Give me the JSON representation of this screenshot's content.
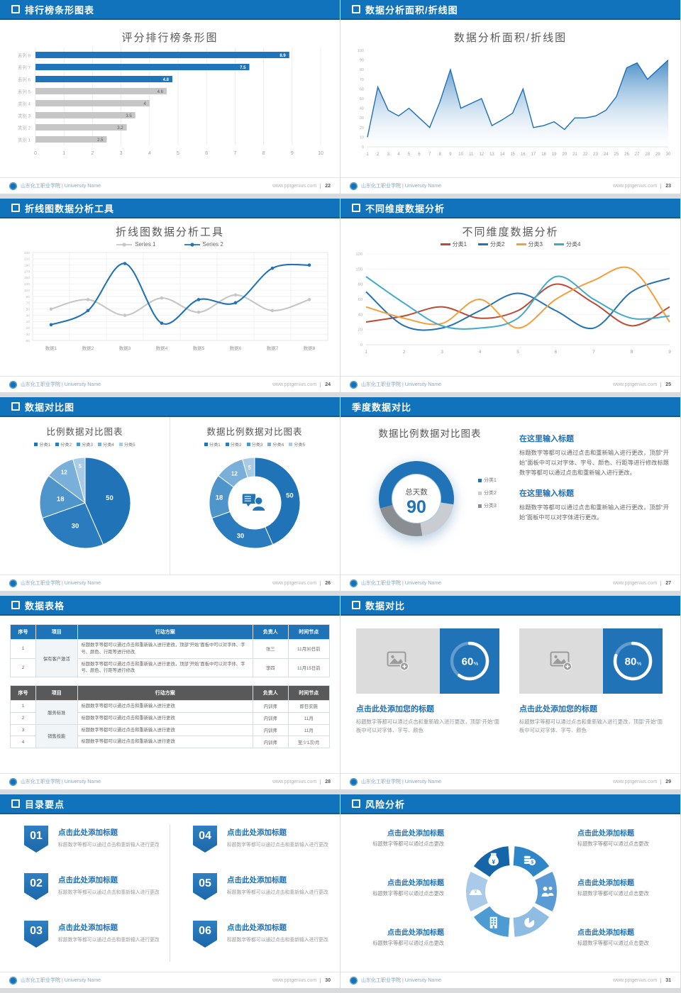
{
  "colors": {
    "header_bar": "#1173BC",
    "accent_blue": "#2173B8",
    "bar_gray": "#C6C6C6",
    "table_header_blue": "#1F74B8",
    "table_header_gray": "#595959"
  },
  "footer": {
    "org": "山东化工职业学院 | University Name",
    "site": "www.pptgenius.com"
  },
  "slides": [
    {
      "id": "bar-ranking",
      "header": "排行榜条形图表",
      "page": "22",
      "title": "评分排行榜条形图"
    },
    {
      "id": "area-line",
      "header": "数据分析面积/折线图",
      "page": "23",
      "title": "数据分析面积/折线图"
    },
    {
      "id": "line-tool",
      "header": "折线图数据分析工具",
      "page": "24",
      "title": "折线图数据分析工具"
    },
    {
      "id": "multi-dim",
      "header": "不同维度数据分析",
      "page": "25",
      "title": "不同维度数据分析"
    },
    {
      "id": "pie-compare",
      "header": "数据对比图",
      "page": "26"
    },
    {
      "id": "quarter",
      "header": "季度数据对比",
      "page": "27",
      "title": "数据比例数据对比图表",
      "center_label": "总天数",
      "center_value": "90",
      "blocks": [
        {
          "title": "在这里输入标题",
          "text": "标题数字等都可以通过点击和重新输入进行更改，顶部“开始”面板中可以对字体、字号、颜色、行距等进行修改标题数字等都可以通过点击和重新输入进行更改。"
        },
        {
          "title": "在这里输入标题",
          "text": "标题数字等都可以通过点击和重新输入进行更改，顶部“开始”面板中可以对字体进行更改。"
        }
      ]
    },
    {
      "id": "tables",
      "header": "数据表格",
      "page": "28"
    },
    {
      "id": "compare-cards",
      "header": "数据对比",
      "page": "29",
      "cards": [
        {
          "percent": "60",
          "title": "点击此处添加您的标题",
          "text": "标题数字等都可以通过点击和重新输入进行更改，顶部“开始”面板中可以对字体、字号、颜色"
        },
        {
          "percent": "80",
          "title": "点击此处添加您的标题",
          "text": "标题数字等都可以通过点击和重新输入进行更改，顶部“开始”面板中可以对字体、字号、颜色"
        }
      ]
    },
    {
      "id": "agenda",
      "header": "目录要点",
      "page": "30",
      "items": [
        {
          "num": "01",
          "title": "点击此处添加标题",
          "text": "标题数字等都可以通过点击和重新输入进行更改"
        },
        {
          "num": "02",
          "title": "点击此处添加标题",
          "text": "标题数字等都可以通过点击和重新输入进行更改"
        },
        {
          "num": "03",
          "title": "点击此处添加标题",
          "text": "标题数字等都可以通过点击和重新输入进行更改"
        },
        {
          "num": "04",
          "title": "点击此处添加标题",
          "text": "标题数字等都可以通过点击和重新输入进行更改"
        },
        {
          "num": "05",
          "title": "点击此处添加标题",
          "text": "标题数字等都可以通过点击和重新输入进行更改"
        },
        {
          "num": "06",
          "title": "点击此处添加标题",
          "text": "标题数字等都可以通过点击和重新输入进行更改"
        }
      ]
    },
    {
      "id": "risk",
      "header": "风险分析",
      "page": "31",
      "items": [
        {
          "pos": "top-left",
          "icon": "money-bag-icon",
          "title": "点击此处添加标题",
          "text": "标题数字等都可以通过点击更改"
        },
        {
          "pos": "top-right",
          "icon": "coins-icon",
          "title": "点击此处添加标题",
          "text": "标题数字等都可以通过点击更改"
        },
        {
          "pos": "mid-left",
          "icon": "helmet-icon",
          "title": "点击此处添加标题",
          "text": "标题数字等都可以通过点击更改"
        },
        {
          "pos": "mid-right",
          "icon": "people-icon",
          "title": "点击此处添加标题",
          "text": "标题数字等都可以通过点击更改"
        },
        {
          "pos": "bottom-left",
          "icon": "building-icon",
          "title": "点击此处添加标题",
          "text": "标题数字等都可以通过点击更改"
        },
        {
          "pos": "bottom-right",
          "icon": "pie-chart-icon",
          "title": "点击此处添加标题",
          "text": "标题数字等都可以通过点击更改"
        }
      ]
    }
  ],
  "chart_data": [
    {
      "slide": "bar-ranking",
      "type": "bar",
      "orientation": "horizontal",
      "title": "评分排行榜条形图",
      "categories": [
        "系列 8",
        "系列 7",
        "系列 6",
        "系列 5",
        "类别 4",
        "类别 3",
        "类别 2",
        "类别 1"
      ],
      "values": [
        8.9,
        7.5,
        4.8,
        4.6,
        4,
        3.5,
        3.2,
        2.5
      ],
      "bar_colors": [
        "#1F74BC",
        "#1F74BC",
        "#1F74BC",
        "#C6C6C6",
        "#C6C6C6",
        "#C6C6C6",
        "#C6C6C6",
        "#C6C6C6"
      ],
      "xlim": [
        0,
        10
      ],
      "xticks": [
        0,
        1,
        2,
        3,
        4,
        5,
        6,
        7,
        8,
        9,
        10
      ],
      "grid": "vertical-faint"
    },
    {
      "slide": "area-line",
      "type": "area",
      "title": "数据分析面积/折线图",
      "x": [
        1,
        2,
        3,
        4,
        5,
        6,
        7,
        8,
        9,
        10,
        11,
        12,
        13,
        14,
        15,
        16,
        17,
        18,
        19,
        20,
        21,
        22,
        23,
        24,
        25,
        26,
        27,
        28,
        29,
        30
      ],
      "values": [
        10,
        62,
        38,
        32,
        40,
        30,
        20,
        47,
        80,
        40,
        45,
        50,
        22,
        28,
        35,
        60,
        20,
        22,
        26,
        18,
        30,
        30,
        32,
        38,
        52,
        82,
        87,
        70,
        80,
        90
      ],
      "ylim": [
        0,
        100
      ],
      "ytick_step": 10,
      "line_color": "#1F6FB5",
      "fill": "blue-gradient"
    },
    {
      "slide": "line-tool",
      "type": "line",
      "smooth": true,
      "title": "折线图数据分析工具",
      "categories": [
        "数据1",
        "数据2",
        "数据3",
        "数据4",
        "数据5",
        "数据6",
        "数据7",
        "数据8"
      ],
      "series": [
        {
          "name": "Series 1",
          "color": "#C6C6C6",
          "values": [
            50,
            80,
            30,
            85,
            40,
            95,
            45,
            80
          ]
        },
        {
          "name": "Series 2",
          "color": "#2272B4",
          "values": [
            0,
            45,
            195,
            5,
            80,
            70,
            180,
            190
          ]
        }
      ],
      "ylim": [
        -50,
        230
      ],
      "ytick_step": 20,
      "legend": "top",
      "markers": true
    },
    {
      "slide": "multi-dim",
      "type": "line",
      "smooth": true,
      "title": "不同维度数据分析",
      "x": [
        1,
        2,
        3,
        4,
        5,
        6,
        7,
        8,
        9
      ],
      "series": [
        {
          "name": "分类1",
          "color": "#BB4A35",
          "values": [
            30,
            38,
            50,
            35,
            45,
            80,
            55,
            25,
            50
          ]
        },
        {
          "name": "分类2",
          "color": "#2272B4",
          "values": [
            70,
            25,
            22,
            45,
            68,
            45,
            22,
            70,
            88
          ]
        },
        {
          "name": "分类3",
          "color": "#F2A03D",
          "values": [
            50,
            35,
            28,
            60,
            22,
            60,
            85,
            100,
            30
          ]
        },
        {
          "name": "分类4",
          "color": "#41AACB",
          "values": [
            90,
            55,
            25,
            22,
            35,
            90,
            60,
            35,
            38
          ]
        }
      ],
      "ylim": [
        0,
        120
      ],
      "ytick_step": 20,
      "legend": "top"
    },
    {
      "slide": "pie-compare",
      "type": "pie",
      "charts": [
        {
          "title": "比例数据对比图表",
          "donut": false,
          "labels": [
            "分类1",
            "分类2",
            "分类3",
            "分类4",
            "分类5"
          ],
          "values": [
            50,
            30,
            18,
            12,
            5
          ],
          "colors": [
            "#2173B8",
            "#2B7CBE",
            "#4E95CB",
            "#79AFD9",
            "#A8CBE8"
          ]
        },
        {
          "title": "数据比例数据对比图表",
          "donut": true,
          "center_icon": "person-chat-icon",
          "labels": [
            "分类1",
            "分类2",
            "分类3",
            "分类4",
            "分类5"
          ],
          "values": [
            50,
            30,
            18,
            12,
            5
          ],
          "colors": [
            "#2173B8",
            "#2B7CBE",
            "#4E95CB",
            "#79AFD9",
            "#A8CBE8"
          ]
        }
      ]
    },
    {
      "slide": "quarter",
      "type": "donut",
      "title": "数据比例数据对比图表",
      "labels": [
        "分类1",
        "分类2",
        "分类3"
      ],
      "values": [
        51,
        18,
        21
      ],
      "colors": [
        "#2173B8",
        "#C9CDD2",
        "#8A8E92"
      ],
      "start_angle": 255,
      "center_label": "总天数",
      "center_value": "90",
      "legend": "right"
    },
    {
      "slide": "tables",
      "type": "table",
      "tables": [
        {
          "header": [
            "序号",
            "项目",
            "行动方案",
            "负责人",
            "时间节点"
          ],
          "header_bg": "#1F74B8",
          "groups": [
            {
              "project": "保有客户激活",
              "rows": [
                {
                  "no": "1",
                  "action": "标题数字等都可以通过点击和重新输入进行更改，顶部“开始”面板中可以对字体、字号、颜色、行距等进行修改",
                  "owner": "张三",
                  "time": "11月30日前"
                },
                {
                  "no": "2",
                  "action": "标题数字等都可以通过点击和重新输入进行更改，顶部“开始”面板中可以对字体、字号、颜色、行距等进行修改",
                  "owner": "李四",
                  "time": "11月15日前"
                }
              ]
            }
          ]
        },
        {
          "header": [
            "序号",
            "项目",
            "行动方案",
            "负责人",
            "时间节点"
          ],
          "header_bg": "#595959",
          "groups": [
            {
              "project": "服务标准",
              "rows": [
                {
                  "no": "1",
                  "action": "标题数字等都可以通过点击和重新输入进行更改",
                  "owner": "内训师",
                  "time": "即日实施"
                },
                {
                  "no": "2",
                  "action": "标题数字等都可以通过点击和重新输入进行更改",
                  "owner": "内训师",
                  "time": "11月"
                }
              ]
            },
            {
              "project": "销售技能",
              "rows": [
                {
                  "no": "3",
                  "action": "标题数字等都可以通过点击和重新输入进行更改",
                  "owner": "内训师",
                  "time": "11月"
                },
                {
                  "no": "4",
                  "action": "标题数字等都可以通过点击和重新输入进行更改",
                  "owner": "内训师",
                  "time": "至少1次/月"
                }
              ]
            }
          ]
        }
      ]
    },
    {
      "slide": "compare-cards",
      "type": "progress-ring",
      "values": [
        60,
        80
      ],
      "ring_color": "#ffffff",
      "box_color": "#2173B8"
    }
  ]
}
